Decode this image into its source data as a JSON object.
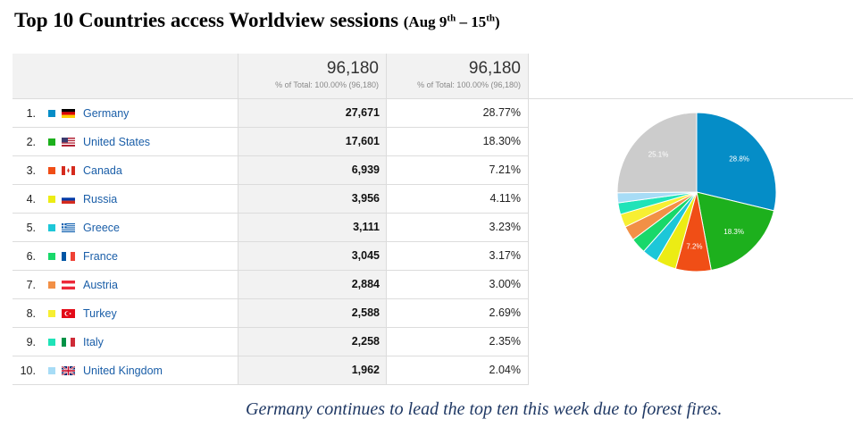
{
  "title": {
    "main": "Top 10 Countries access Worldview sessions",
    "paren_open": "(Aug 9",
    "sup1": "th",
    "dash": " – 15",
    "sup2": "th",
    "paren_close": ")"
  },
  "header": {
    "sessions_total": "96,180",
    "sessions_sub": "% of Total: 100.00% (96,180)",
    "percent_total": "96,180",
    "percent_sub": "% of Total: 100.00% (96,180)"
  },
  "colors": {
    "Germany": "#058dc7",
    "United States": "#1db01d",
    "Canada": "#f04e16",
    "Russia": "#ecec14",
    "Greece": "#1dc7d8",
    "France": "#19d86a",
    "Austria": "#f29046",
    "Turkey": "#f7ef32",
    "Italy": "#20e3b8",
    "United Kingdom": "#a7dcf6",
    "Other": "#cccccc"
  },
  "rows": [
    {
      "rank": "1.",
      "country": "Germany",
      "sessions": "27,671",
      "percent": "28.77%",
      "flag": "germany-flag-icon"
    },
    {
      "rank": "2.",
      "country": "United States",
      "sessions": "17,601",
      "percent": "18.30%",
      "flag": "united-states-flag-icon"
    },
    {
      "rank": "3.",
      "country": "Canada",
      "sessions": "6,939",
      "percent": "7.21%",
      "flag": "canada-flag-icon"
    },
    {
      "rank": "4.",
      "country": "Russia",
      "sessions": "3,956",
      "percent": "4.11%",
      "flag": "russia-flag-icon"
    },
    {
      "rank": "5.",
      "country": "Greece",
      "sessions": "3,111",
      "percent": "3.23%",
      "flag": "greece-flag-icon"
    },
    {
      "rank": "6.",
      "country": "France",
      "sessions": "3,045",
      "percent": "3.17%",
      "flag": "france-flag-icon"
    },
    {
      "rank": "7.",
      "country": "Austria",
      "sessions": "2,884",
      "percent": "3.00%",
      "flag": "austria-flag-icon"
    },
    {
      "rank": "8.",
      "country": "Turkey",
      "sessions": "2,588",
      "percent": "2.69%",
      "flag": "turkey-flag-icon"
    },
    {
      "rank": "9.",
      "country": "Italy",
      "sessions": "2,258",
      "percent": "2.35%",
      "flag": "italy-flag-icon"
    },
    {
      "rank": "10.",
      "country": "United Kingdom",
      "sessions": "1,962",
      "percent": "2.04%",
      "flag": "united-kingdom-flag-icon"
    }
  ],
  "chart_data": {
    "type": "pie",
    "categories": [
      "Germany",
      "United States",
      "Canada",
      "Russia",
      "Greece",
      "France",
      "Austria",
      "Turkey",
      "Italy",
      "United Kingdom",
      "Other"
    ],
    "values": [
      28.77,
      18.3,
      7.21,
      4.11,
      3.23,
      3.17,
      3.0,
      2.69,
      2.35,
      2.04,
      25.13
    ],
    "slice_labels": [
      "28.8%",
      "18.3%",
      "7.2%",
      "",
      "",
      "",
      "",
      "",
      "",
      "",
      "25.1%"
    ],
    "start": "12 o'clock, clockwise"
  },
  "caption": "Germany continues to lead the top ten this week due to forest fires."
}
